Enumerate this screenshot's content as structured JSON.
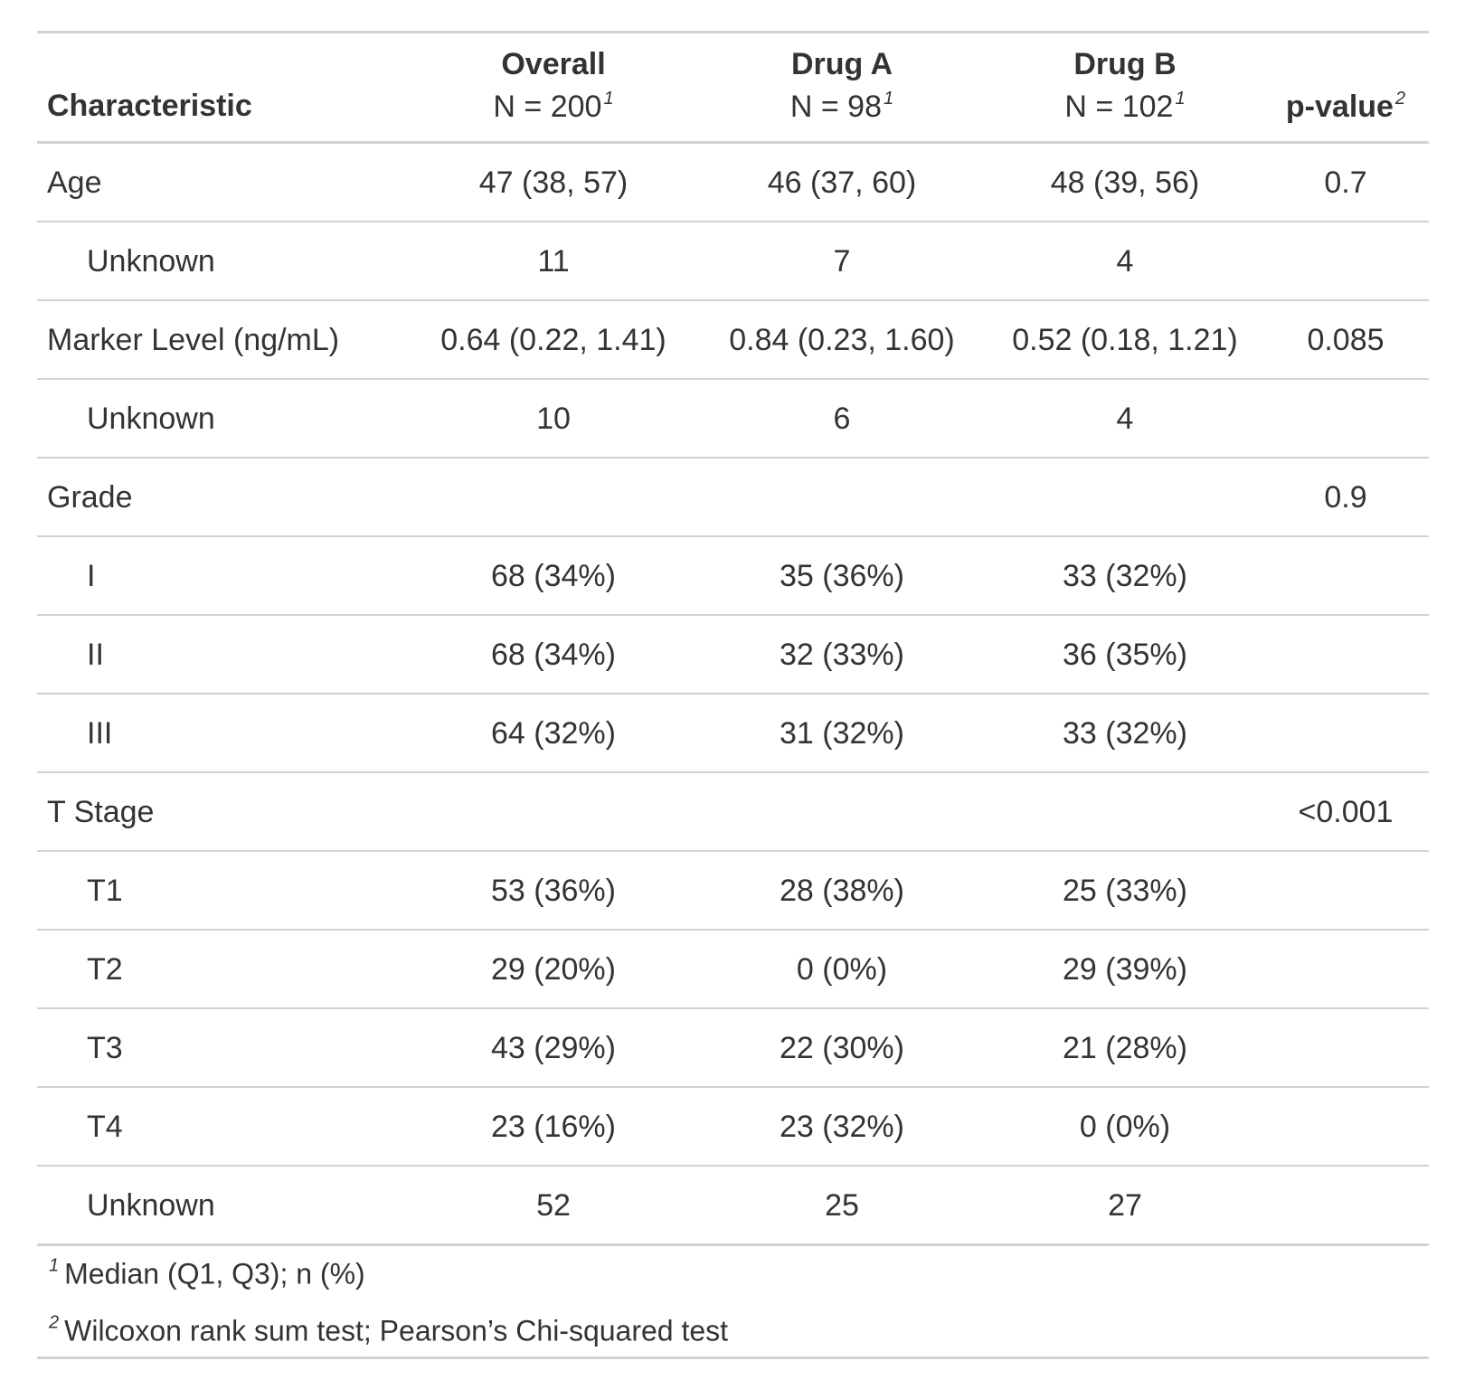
{
  "table": {
    "header": {
      "label": "Characteristic",
      "columns": [
        {
          "name": "Overall",
          "n": "N = 200",
          "footnote": "1"
        },
        {
          "name": "Drug A",
          "n": "N = 98",
          "footnote": "1"
        },
        {
          "name": "Drug B",
          "n": "N = 102",
          "footnote": "1"
        },
        {
          "name": "p-value",
          "footnote": "2"
        }
      ]
    },
    "variables": [
      {
        "label": "Age",
        "values": [
          "47 (38, 57)",
          "46 (37, 60)",
          "48 (39, 56)"
        ],
        "p": "0.7",
        "levels": [
          {
            "label": "Unknown",
            "values": [
              "11",
              "7",
              "4"
            ]
          }
        ]
      },
      {
        "label": "Marker Level (ng/mL)",
        "values": [
          "0.64 (0.22, 1.41)",
          "0.84 (0.23, 1.60)",
          "0.52 (0.18, 1.21)"
        ],
        "p": "0.085",
        "levels": [
          {
            "label": "Unknown",
            "values": [
              "10",
              "6",
              "4"
            ]
          }
        ]
      },
      {
        "label": "Grade",
        "p": "0.9",
        "levels": [
          {
            "label": "I",
            "values": [
              "68 (34%)",
              "35 (36%)",
              "33 (32%)"
            ]
          },
          {
            "label": "II",
            "values": [
              "68 (34%)",
              "32 (33%)",
              "36 (35%)"
            ]
          },
          {
            "label": "III",
            "values": [
              "64 (32%)",
              "31 (32%)",
              "33 (32%)"
            ]
          }
        ]
      },
      {
        "label": "T Stage",
        "p": "<0.001",
        "levels": [
          {
            "label": "T1",
            "values": [
              "53 (36%)",
              "28 (38%)",
              "25 (33%)"
            ]
          },
          {
            "label": "T2",
            "values": [
              "29 (20%)",
              "0 (0%)",
              "29 (39%)"
            ]
          },
          {
            "label": "T3",
            "values": [
              "43 (29%)",
              "22 (30%)",
              "21 (28%)"
            ]
          },
          {
            "label": "T4",
            "values": [
              "23 (16%)",
              "23 (32%)",
              "0 (0%)"
            ]
          },
          {
            "label": "Unknown",
            "values": [
              "52",
              "25",
              "27"
            ]
          }
        ]
      }
    ],
    "footnotes": [
      {
        "mark": "1",
        "text": "Median (Q1, Q3); n (%)"
      },
      {
        "mark": "2",
        "text": "Wilcoxon rank sum test; Pearson’s Chi-squared test"
      }
    ]
  }
}
